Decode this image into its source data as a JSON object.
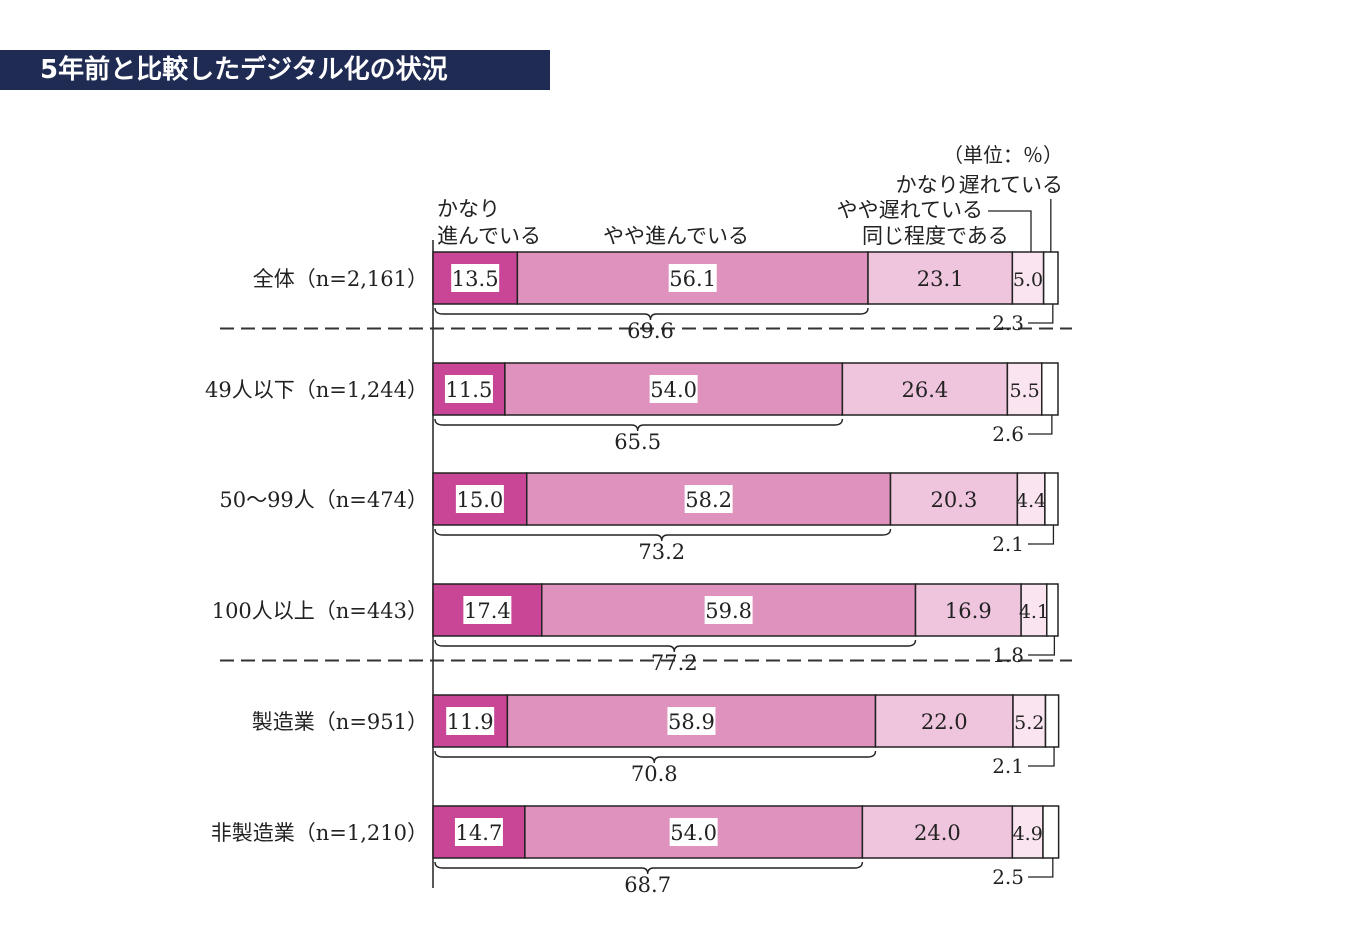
{
  "header": {
    "title": "5年前と比較したデジタル化の状況"
  },
  "chart_data": {
    "type": "bar",
    "stacked": true,
    "orientation": "horizontal",
    "unit_note": "（単位：％）",
    "xlim": [
      0,
      100
    ],
    "categories": [
      "全体（n=2,161）",
      "49人以下（n=1,244）",
      "50～99人（n=474）",
      "100人以上（n=443）",
      "製造業（n=951）",
      "非製造業（n=1,210）"
    ],
    "series": [
      {
        "name": "かなり進んでいる",
        "values": [
          13.5,
          11.5,
          15.0,
          17.4,
          11.9,
          14.7
        ]
      },
      {
        "name": "やや進んでいる",
        "values": [
          56.1,
          54.0,
          58.2,
          59.8,
          58.9,
          54.0
        ]
      },
      {
        "name": "同じ程度である",
        "values": [
          23.1,
          26.4,
          20.3,
          16.9,
          22.0,
          24.0
        ]
      },
      {
        "name": "やや遅れている",
        "values": [
          5.0,
          5.5,
          4.4,
          4.1,
          5.2,
          4.9
        ]
      },
      {
        "name": "かなり遅れている",
        "values": [
          2.3,
          2.6,
          2.1,
          1.8,
          2.1,
          2.5
        ]
      }
    ],
    "value_labels": [
      [
        "13.5",
        "56.1",
        "23.1",
        "5.0",
        "2.3"
      ],
      [
        "11.5",
        "54.0",
        "26.4",
        "5.5",
        "2.6"
      ],
      [
        "15.0",
        "58.2",
        "20.3",
        "4.4",
        "2.1"
      ],
      [
        "17.4",
        "59.8",
        "16.9",
        "4.1",
        "1.8"
      ],
      [
        "11.9",
        "58.9",
        "22.0",
        "5.2",
        "2.1"
      ],
      [
        "14.7",
        "54.0",
        "24.0",
        "4.9",
        "2.5"
      ]
    ],
    "sum_labels": [
      "69.6",
      "65.5",
      "73.2",
      "77.2",
      "70.8",
      "68.7"
    ],
    "legend_lines": {
      "s0": [
        "かなり",
        "進んでいる"
      ],
      "s1": "やや進んでいる",
      "s2": "同じ程度である",
      "s3": "やや遅れている",
      "s4": "かなり遅れている"
    },
    "colors": [
      "#c94595",
      "#df92be",
      "#efc4dd",
      "#f9e4f0",
      "#ffffff"
    ],
    "separators_after": [
      0,
      3
    ]
  }
}
